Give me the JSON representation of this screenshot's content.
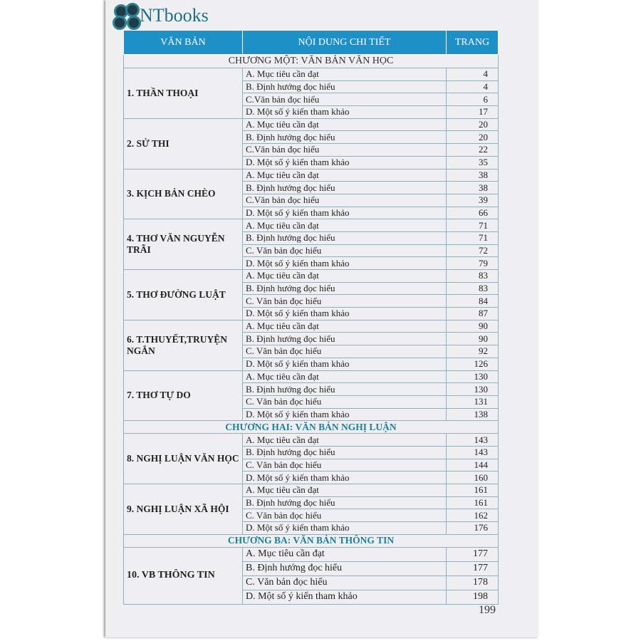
{
  "logo": {
    "text": "NTbooks"
  },
  "table": {
    "headers": [
      "VĂN BẢN",
      "NỘI DUNG CHI TIẾT",
      "TRANG"
    ],
    "sections": [
      {
        "chapter": "CHƯƠNG MỘT: VĂN BẢN VĂN HỌC",
        "groups": [
          {
            "title": "1. THẦN THOẠI",
            "items": [
              [
                "A. Mục tiêu cần đạt",
                "4"
              ],
              [
                "B. Định hướng đọc hiểu",
                "4"
              ],
              [
                "C.Văn bản đọc hiểu",
                "6"
              ],
              [
                "D. Một số ý kiến tham khảo",
                "17"
              ]
            ]
          },
          {
            "title": "2. SỬ THI",
            "items": [
              [
                "A. Mục tiêu cần đạt",
                "20"
              ],
              [
                "B. Định hướng đọc hiểu",
                "20"
              ],
              [
                "C.Văn bản đọc hiểu",
                "22"
              ],
              [
                "D. Một số ý kiến tham khảo",
                "35"
              ]
            ]
          },
          {
            "title": "3. KỊCH BẢN CHÈO",
            "items": [
              [
                "A. Mục tiêu cần đạt",
                "38"
              ],
              [
                "B. Định hướng đọc hiểu",
                "38"
              ],
              [
                "C.Văn bản đọc hiểu",
                "39"
              ],
              [
                "D. Một số ý kiến tham khảo",
                "66"
              ]
            ]
          },
          {
            "title": "4. THƠ VĂN NGUYỄN TRÃI",
            "items": [
              [
                "A. Mục tiêu cần đạt",
                "71"
              ],
              [
                "B. Định hướng đọc hiểu",
                "71"
              ],
              [
                "C. Văn bản đọc hiểu",
                "72"
              ],
              [
                "D. Một số ý kiến tham khảo",
                "79"
              ]
            ]
          },
          {
            "title": "5. THƠ ĐƯỜNG LUẬT",
            "items": [
              [
                "A. Mục tiêu cần đạt",
                "83"
              ],
              [
                "B. Định hướng đọc hiểu",
                "83"
              ],
              [
                "C. Văn bản đọc hiểu",
                "84"
              ],
              [
                "D. Một số ý kiến tham khảo",
                "87"
              ]
            ]
          },
          {
            "title": "6. T.THUYẾT,TRUYỆN NGẮN",
            "items": [
              [
                "A. Mục tiêu cần đạt",
                "90"
              ],
              [
                "B. Định hướng đọc hiểu",
                "90"
              ],
              [
                "C. Văn bản đọc hiểu",
                "92"
              ],
              [
                "D. Một số ý kiến tham khảo",
                "126"
              ]
            ]
          },
          {
            "title": "7. THƠ TỰ DO",
            "items": [
              [
                "A. Mục tiêu cần đạt",
                "130"
              ],
              [
                "B. Định hướng đọc hiểu",
                "130"
              ],
              [
                "C. Văn bản đọc hiểu",
                "131"
              ],
              [
                "D. Một số ý kiến tham khảo",
                "138"
              ]
            ]
          }
        ]
      },
      {
        "chapter": "CHƯƠNG HAI: VĂN BẢN NGHỊ LUẬN",
        "groups": [
          {
            "title": "8. NGHỊ LUẬN VĂN HỌC",
            "items": [
              [
                "A. Mục tiêu cần đạt",
                "143"
              ],
              [
                "B. Định hướng đọc hiểu",
                "143"
              ],
              [
                "C. Văn bản đọc hiểu",
                "144"
              ],
              [
                "D. Một số ý kiến tham khảo",
                "160"
              ]
            ]
          },
          {
            "title": "9. NGHỊ LUẬN XÃ HỘI",
            "items": [
              [
                "A. Mục tiêu cần đạt",
                "161"
              ],
              [
                "B. Định hướng đọc hiểu",
                "161"
              ],
              [
                "C. Văn bản đọc hiểu",
                "162"
              ],
              [
                "D. Một số ý kiến tham khảo",
                "176"
              ]
            ]
          }
        ]
      },
      {
        "chapter": "CHƯƠNG BA: VĂN BẢN THÔNG TIN",
        "groups": [
          {
            "title": "10. VB THÔNG TIN",
            "items": [
              [
                "A. Mục tiêu cần đạt",
                "177"
              ],
              [
                "B. Định hướng đọc hiểu",
                "177"
              ],
              [
                "C. Văn bản đọc hiểu",
                "178"
              ],
              [
                "D. Một số ý kiến tham khảo",
                "198"
              ]
            ]
          }
        ]
      }
    ]
  },
  "page_number": "199",
  "colors": {
    "header": "#1f8fc8",
    "chapter_text": "#1d7f9a",
    "logo": "#1f6f86"
  }
}
